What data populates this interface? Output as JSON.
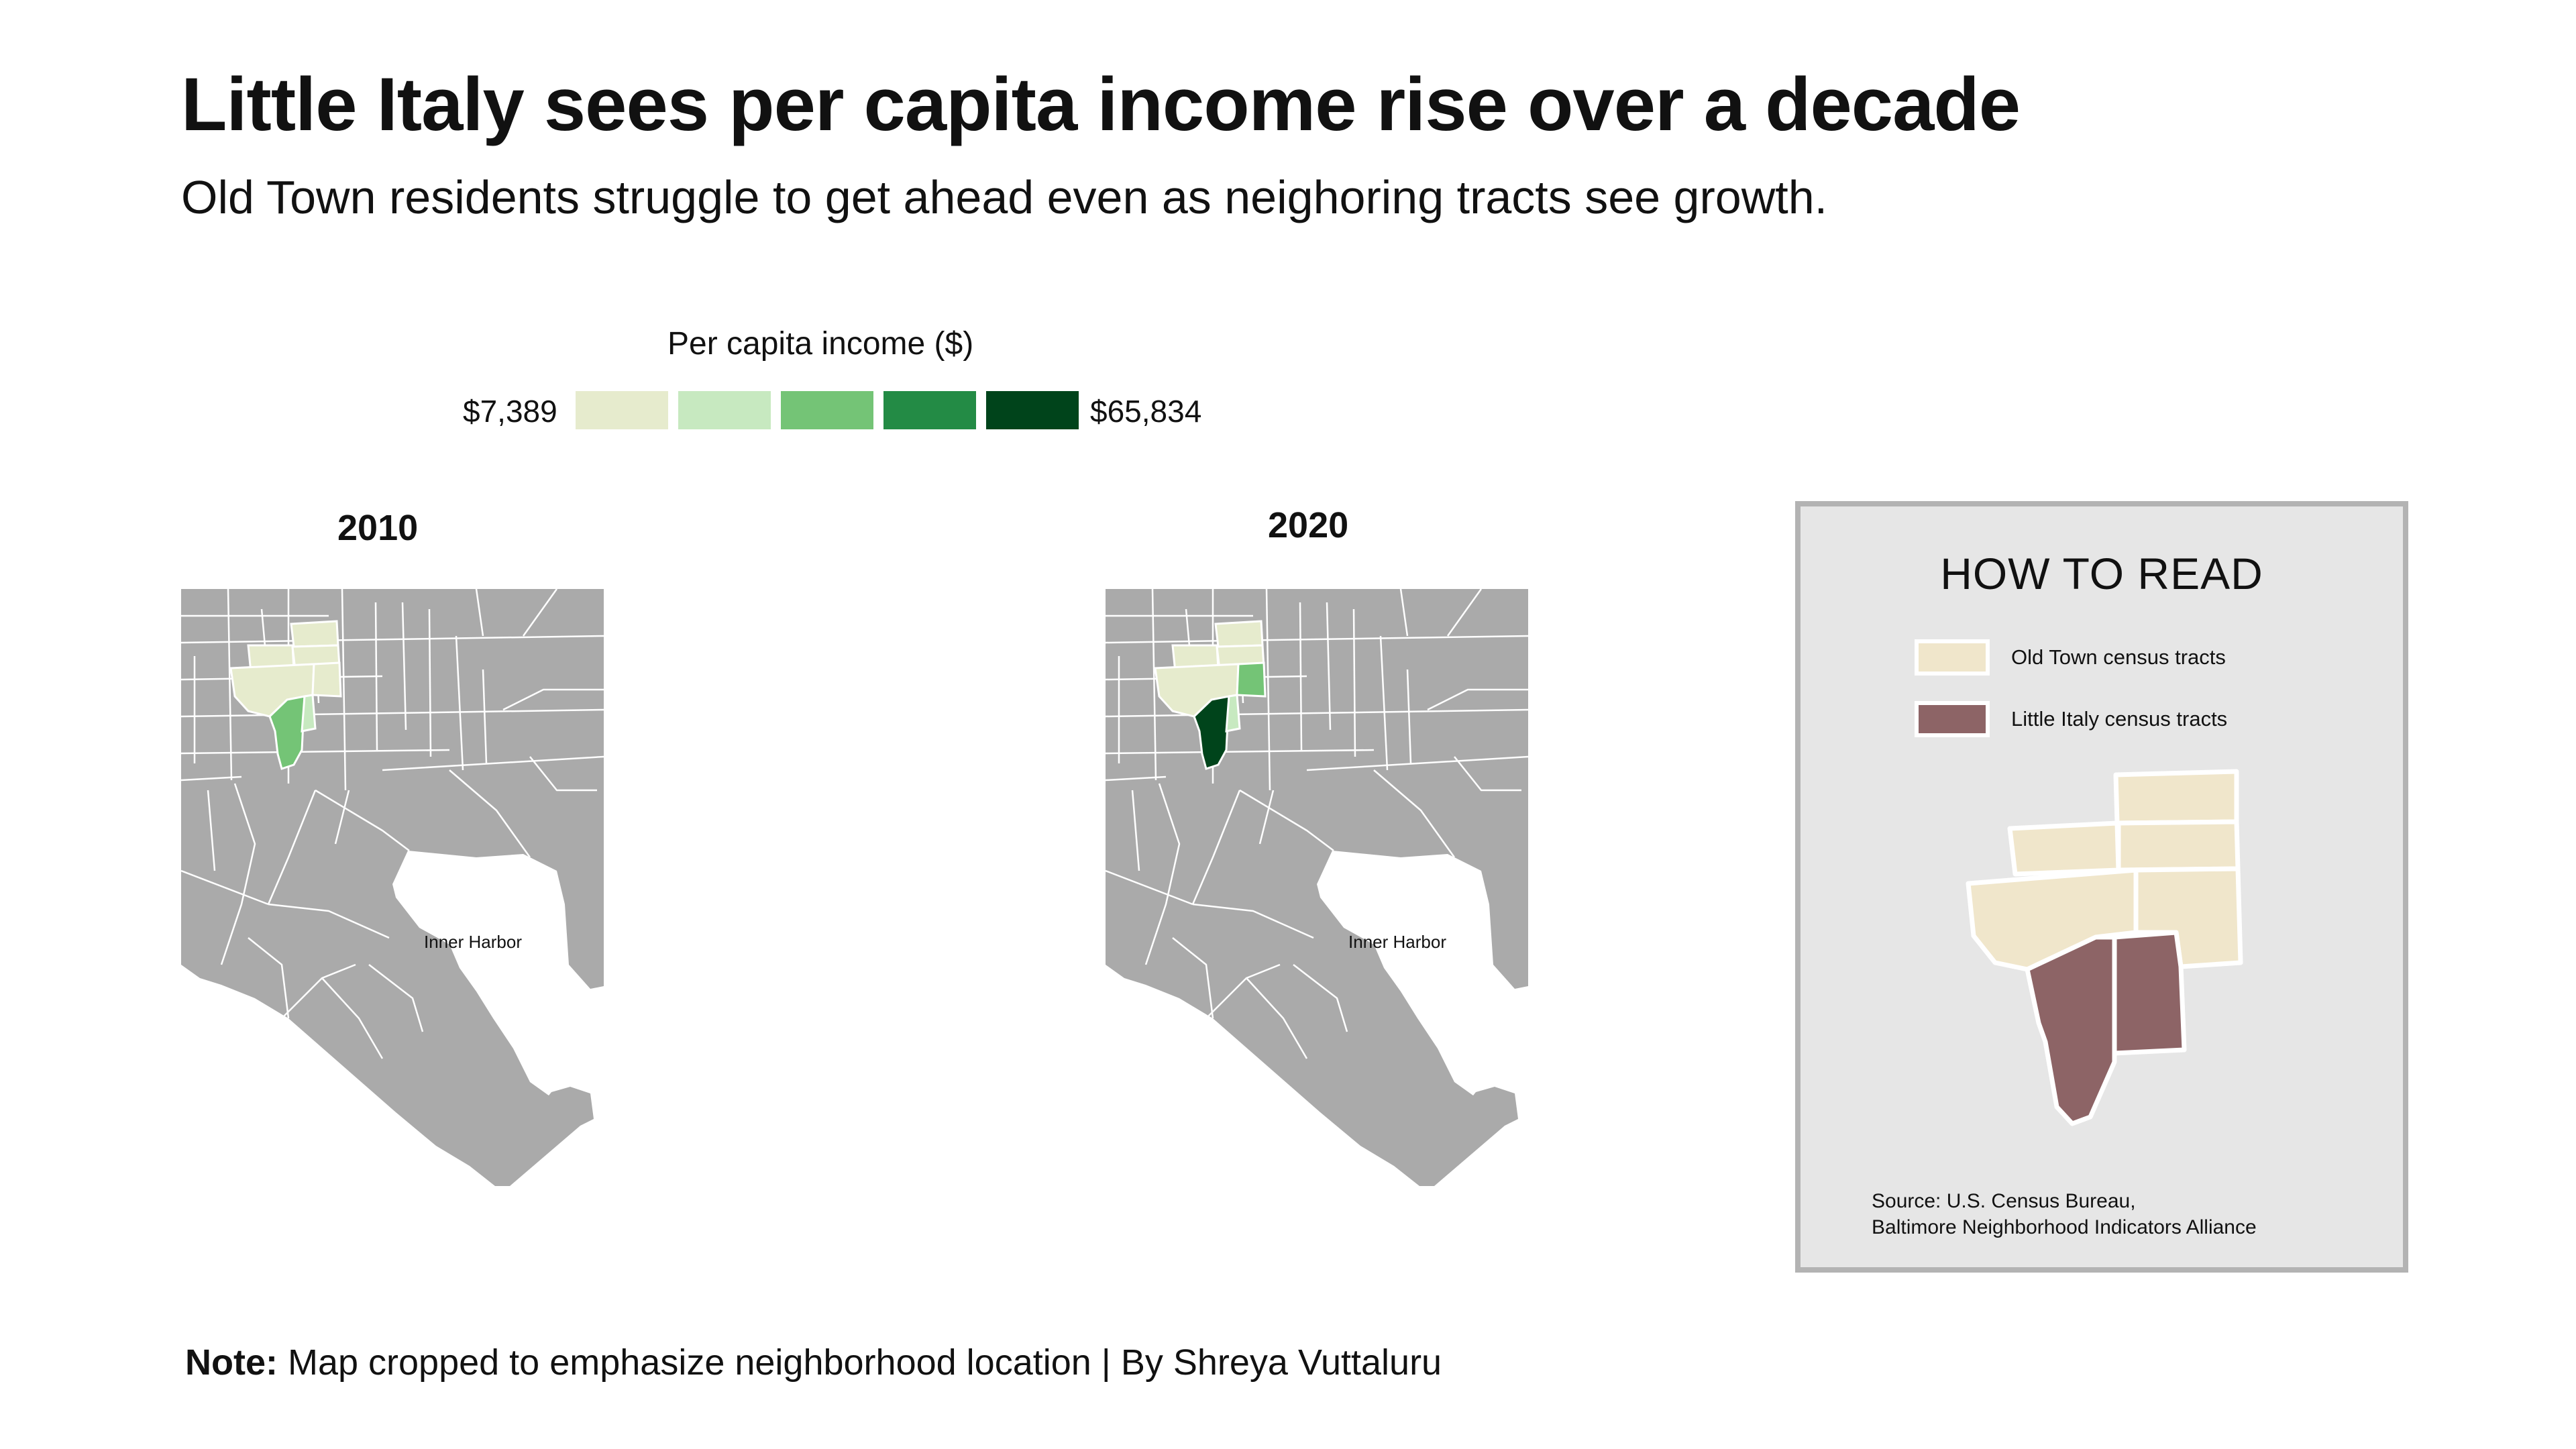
{
  "title": "Little Italy sees per capita income rise over a decade",
  "subtitle": "Old Town residents struggle to get ahead even as neighoring tracts see growth.",
  "legend": {
    "title": "Per capita income ($)",
    "min_label": "$7,389",
    "max_label": "$65,834",
    "colors": [
      "#e6ebcd",
      "#c7e9c0",
      "#74c476",
      "#238b45",
      "#00441b"
    ]
  },
  "maps": [
    {
      "year": "2010",
      "label_harbor": "Inner Harbor",
      "old_town_colors": [
        "#e6ebcd",
        "#e6ebcd",
        "#e6ebcd",
        "#e6ebcd",
        "#e6ebcd"
      ],
      "little_italy_colors": [
        "#74c476",
        "#c7e9c0"
      ]
    },
    {
      "year": "2020",
      "label_harbor": "Inner Harbor",
      "old_town_colors": [
        "#e6ebcd",
        "#e6ebcd",
        "#e6ebcd",
        "#e6ebcd",
        "#74c476"
      ],
      "little_italy_colors": [
        "#00441b",
        "#c7e9c0"
      ]
    }
  ],
  "how_to_read": {
    "title": "HOW TO READ",
    "old_town_label": "Old Town census tracts",
    "little_italy_label": "Little Italy census tracts",
    "old_town_color": "#f0e6cb",
    "little_italy_color": "#8d6466",
    "source_line1": "Source: U.S. Census Bureau,",
    "source_line2": "Baltimore Neighborhood Indicators Alliance"
  },
  "colors": {
    "base_tract": "#aaaaaa",
    "tract_border": "#ffffff",
    "panel_bg": "#e6e6e6",
    "panel_border": "#b3b3b3"
  },
  "footer": {
    "note_label": "Note:",
    "note_text": " Map cropped to emphasize neighborhood location  |  By Shreya Vuttaluru"
  }
}
